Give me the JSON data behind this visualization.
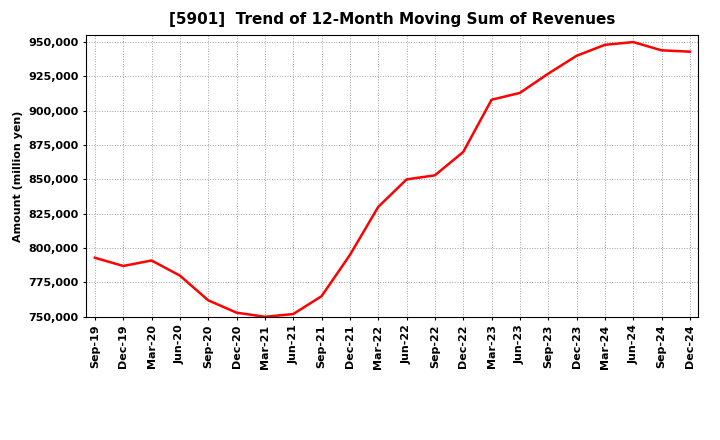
{
  "title": "[5901]  Trend of 12-Month Moving Sum of Revenues",
  "ylabel": "Amount (million yen)",
  "line_color": "#ff0000",
  "line_width": 1.8,
  "background_color": "#ffffff",
  "grid_color": "#999999",
  "tick_labels": [
    "Sep-19",
    "Dec-19",
    "Mar-20",
    "Jun-20",
    "Sep-20",
    "Dec-20",
    "Mar-21",
    "Jun-21",
    "Sep-21",
    "Dec-21",
    "Mar-22",
    "Jun-22",
    "Sep-22",
    "Dec-22",
    "Mar-23",
    "Jun-23",
    "Sep-23",
    "Dec-23",
    "Mar-24",
    "Jun-24",
    "Sep-24",
    "Dec-24"
  ],
  "values": [
    793000,
    787000,
    791000,
    780000,
    762000,
    753000,
    750000,
    752000,
    765000,
    795000,
    830000,
    850000,
    853000,
    870000,
    908000,
    913000,
    927000,
    940000,
    948000,
    950000,
    944000,
    943000
  ],
  "ylim": [
    750000,
    955000
  ],
  "yticks": [
    750000,
    775000,
    800000,
    825000,
    850000,
    875000,
    900000,
    925000,
    950000
  ],
  "title_fontsize": 11,
  "axis_fontsize": 8,
  "ylabel_fontsize": 8
}
